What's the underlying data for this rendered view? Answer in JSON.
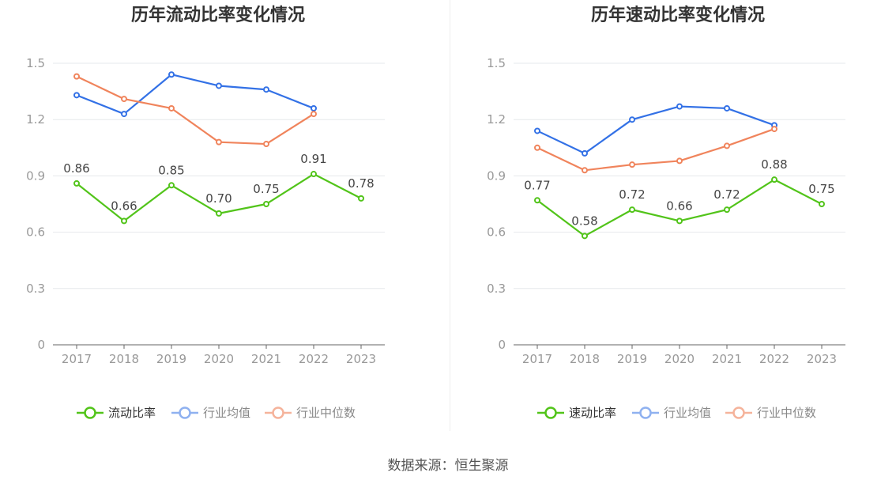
{
  "colors": {
    "primary": "#52c41a",
    "avg": "#3371e6",
    "median": "#f0845c",
    "legend_avg": "#8fb1f0",
    "legend_median": "#f5b39b"
  },
  "footer": "数据来源：恒生聚源",
  "chart_data": [
    {
      "type": "line",
      "title": "历年流动比率变化情况",
      "categories": [
        "2017",
        "2018",
        "2019",
        "2020",
        "2021",
        "2022",
        "2023"
      ],
      "ylim": [
        0,
        1.5
      ],
      "yticks": [
        "0",
        "0.3",
        "0.6",
        "0.9",
        "1.2",
        "1.5"
      ],
      "grid": true,
      "legend_position": "bottom",
      "series": [
        {
          "name": "流动比率",
          "values": [
            0.86,
            0.66,
            0.85,
            0.7,
            0.75,
            0.91,
            0.78
          ],
          "labels": [
            "0.86",
            "0.66",
            "0.85",
            "0.70",
            "0.75",
            "0.91",
            "0.78"
          ]
        },
        {
          "name": "行业均值",
          "values": [
            1.33,
            1.23,
            1.44,
            1.38,
            1.36,
            1.26,
            null
          ]
        },
        {
          "name": "行业中位数",
          "values": [
            1.43,
            1.31,
            1.26,
            1.08,
            1.07,
            1.23,
            null
          ]
        }
      ]
    },
    {
      "type": "line",
      "title": "历年速动比率变化情况",
      "categories": [
        "2017",
        "2018",
        "2019",
        "2020",
        "2021",
        "2022",
        "2023"
      ],
      "ylim": [
        0,
        1.5
      ],
      "yticks": [
        "0",
        "0.3",
        "0.6",
        "0.9",
        "1.2",
        "1.5"
      ],
      "grid": true,
      "legend_position": "bottom",
      "series": [
        {
          "name": "速动比率",
          "values": [
            0.77,
            0.58,
            0.72,
            0.66,
            0.72,
            0.88,
            0.75
          ],
          "labels": [
            "0.77",
            "0.58",
            "0.72",
            "0.66",
            "0.72",
            "0.88",
            "0.75"
          ]
        },
        {
          "name": "行业均值",
          "values": [
            1.14,
            1.02,
            1.2,
            1.27,
            1.26,
            1.17,
            null
          ]
        },
        {
          "name": "行业中位数",
          "values": [
            1.05,
            0.93,
            0.96,
            0.98,
            1.06,
            1.15,
            null
          ]
        }
      ]
    }
  ]
}
